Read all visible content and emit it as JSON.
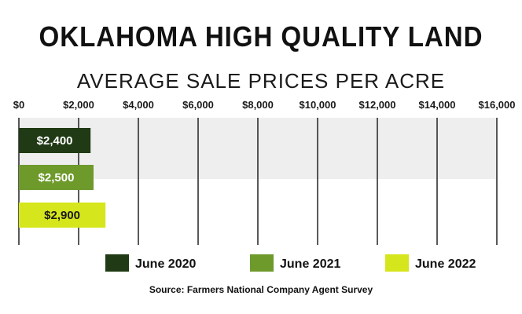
{
  "chart_data": {
    "type": "bar",
    "orientation": "horizontal",
    "title": "OKLAHOMA HIGH QUALITY LAND",
    "subtitle": "AVERAGE SALE PRICES PER ACRE",
    "source": "Source: Farmers National Company Agent Survey",
    "xlim": [
      0,
      16000
    ],
    "ticks": [
      {
        "value": 0,
        "label": "$0"
      },
      {
        "value": 2000,
        "label": "$2,000"
      },
      {
        "value": 4000,
        "label": "$4,000"
      },
      {
        "value": 6000,
        "label": "$6,000"
      },
      {
        "value": 8000,
        "label": "$8,000"
      },
      {
        "value": 10000,
        "label": "$10,000"
      },
      {
        "value": 12000,
        "label": "$12,000"
      },
      {
        "value": 14000,
        "label": "$14,000"
      },
      {
        "value": 16000,
        "label": "$16,000"
      }
    ],
    "grid": true,
    "legend_position": "bottom",
    "series": [
      {
        "name": "June 2020",
        "value": 2400,
        "label": "$2,400",
        "color": "#1f3a14",
        "label_color": "#ffffff"
      },
      {
        "name": "June 2021",
        "value": 2500,
        "label": "$2,500",
        "color": "#6e9a2c",
        "label_color": "#ffffff"
      },
      {
        "name": "June 2022",
        "value": 2900,
        "label": "$2,900",
        "color": "#d6e61c",
        "label_color": "#1a1a1a"
      }
    ]
  }
}
